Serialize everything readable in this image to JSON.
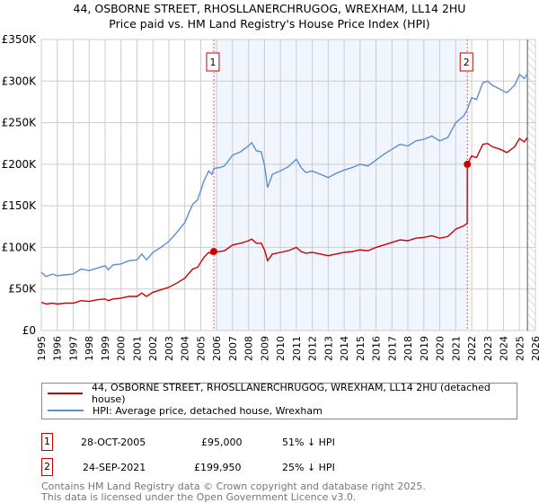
{
  "title_line1": "44, OSBORNE STREET, RHOSLLANERCHRUGOG, WREXHAM, LL14 2HU",
  "title_line2": "Price paid vs. HM Land Registry's House Price Index (HPI)",
  "chart_data": {
    "type": "line",
    "title": "44, OSBORNE STREET, RHOSLLANERCHRUGOG, WREXHAM, LL14 2HU — Price paid vs. HM Land Registry's House Price Index (HPI)",
    "xlim": [
      1995,
      2026
    ],
    "ylim": [
      0,
      350000
    ],
    "x_ticks": [
      "1995",
      "1996",
      "1997",
      "1998",
      "1999",
      "2000",
      "2001",
      "2002",
      "2003",
      "2004",
      "2005",
      "2006",
      "2007",
      "2008",
      "2009",
      "2010",
      "2011",
      "2012",
      "2013",
      "2014",
      "2015",
      "2016",
      "2017",
      "2018",
      "2019",
      "2020",
      "2021",
      "2022",
      "2023",
      "2024",
      "2025",
      "2026"
    ],
    "y_ticks": [
      {
        "v": 0,
        "label": "£0"
      },
      {
        "v": 50000,
        "label": "£50K"
      },
      {
        "v": 100000,
        "label": "£100K"
      },
      {
        "v": 150000,
        "label": "£150K"
      },
      {
        "v": 200000,
        "label": "£200K"
      },
      {
        "v": 250000,
        "label": "£250K"
      },
      {
        "v": 300000,
        "label": "£300K"
      },
      {
        "v": 350000,
        "label": "£350K"
      }
    ],
    "grid": true,
    "shaded_range": [
      2005.82,
      2021.73
    ],
    "forecast_hatch_from": 2025.5,
    "series": [
      {
        "name": "44, OSBORNE STREET, RHOSLLANERCHRUGOG, WREXHAM, LL14 2HU (detached house)",
        "color": "#cc0000",
        "x": [
          1995,
          1995.3,
          1995.7,
          1996,
          1996.5,
          1997,
          1997.5,
          1998,
          1998.5,
          1999,
          1999.2,
          1999.5,
          2000,
          2000.5,
          2001,
          2001.3,
          2001.6,
          2002,
          2002.5,
          2003,
          2003.5,
          2004,
          2004.5,
          2004.8,
          2005.2,
          2005.5,
          2005.7,
          2005.82,
          2006.2,
          2006.5,
          2007,
          2007.5,
          2008,
          2008.2,
          2008.5,
          2008.8,
          2009,
          2009.2,
          2009.5,
          2010,
          2010.5,
          2011,
          2011.3,
          2011.6,
          2012,
          2012.5,
          2013,
          2013.5,
          2014,
          2014.5,
          2015,
          2015.5,
          2016,
          2016.5,
          2017,
          2017.5,
          2018,
          2018.5,
          2019,
          2019.5,
          2020,
          2020.5,
          2021,
          2021.5,
          2021.72,
          2021.73,
          2022,
          2022.3,
          2022.7,
          2023,
          2023.3,
          2023.8,
          2024.2,
          2024.7,
          2025,
          2025.3,
          2025.5
        ],
        "values": [
          34000,
          32000,
          33000,
          32000,
          33000,
          33000,
          36000,
          35000,
          37000,
          38000,
          36000,
          38000,
          39000,
          41000,
          41000,
          45000,
          41000,
          46000,
          49000,
          52000,
          57000,
          63000,
          74000,
          76000,
          88000,
          94000,
          92000,
          95000,
          95000,
          96000,
          103000,
          105000,
          108000,
          110000,
          105000,
          105000,
          97000,
          84000,
          92000,
          94000,
          96000,
          100000,
          95000,
          93000,
          94000,
          92000,
          90000,
          92000,
          94000,
          95000,
          97000,
          96000,
          100000,
          103000,
          106000,
          109000,
          108000,
          111000,
          112000,
          114000,
          111000,
          113000,
          122000,
          126000,
          129000,
          199950,
          210000,
          208000,
          224000,
          225000,
          221000,
          218000,
          214000,
          221000,
          231000,
          227000,
          232000
        ]
      },
      {
        "name": "HPI: Average price, detached house, Wrexham",
        "color": "#5b8fd4",
        "x": [
          1995,
          1995.3,
          1995.7,
          1996,
          1996.5,
          1997,
          1997.5,
          1998,
          1998.5,
          1999,
          1999.2,
          1999.5,
          2000,
          2000.5,
          2001,
          2001.3,
          2001.6,
          2002,
          2002.5,
          2003,
          2003.5,
          2004,
          2004.5,
          2004.8,
          2005.2,
          2005.5,
          2005.7,
          2005.82,
          2006.2,
          2006.5,
          2007,
          2007.5,
          2008,
          2008.2,
          2008.5,
          2008.8,
          2009,
          2009.2,
          2009.5,
          2010,
          2010.5,
          2011,
          2011.3,
          2011.6,
          2012,
          2012.5,
          2013,
          2013.5,
          2014,
          2014.5,
          2015,
          2015.5,
          2016,
          2016.5,
          2017,
          2017.5,
          2018,
          2018.5,
          2019,
          2019.5,
          2020,
          2020.5,
          2021,
          2021.5,
          2021.73,
          2022,
          2022.3,
          2022.7,
          2023,
          2023.3,
          2023.8,
          2024.2,
          2024.7,
          2025,
          2025.3,
          2025.5
        ],
        "values": [
          70000,
          65000,
          68000,
          66000,
          67000,
          68000,
          74000,
          72000,
          75000,
          78000,
          73000,
          79000,
          80000,
          84000,
          85000,
          92000,
          85000,
          94000,
          100000,
          107000,
          118000,
          130000,
          152000,
          157000,
          180000,
          192000,
          188000,
          195000,
          196000,
          198000,
          211000,
          215000,
          222000,
          226000,
          216000,
          215000,
          199000,
          172000,
          188000,
          192000,
          197000,
          206000,
          196000,
          190000,
          192000,
          188000,
          184000,
          189000,
          193000,
          196000,
          200000,
          198000,
          205000,
          212000,
          218000,
          224000,
          222000,
          228000,
          230000,
          234000,
          228000,
          232000,
          250000,
          258000,
          266000,
          280000,
          278000,
          298000,
          300000,
          295000,
          290000,
          286000,
          295000,
          308000,
          303000,
          309000
        ]
      }
    ],
    "sales": [
      {
        "n": "1",
        "x": 2005.82,
        "value": 95000
      },
      {
        "n": "2",
        "x": 2021.73,
        "value": 199950
      }
    ]
  },
  "legend": {
    "property": "44, OSBORNE STREET, RHOSLLANERCHRUGOG, WREXHAM, LL14 2HU (detached house)",
    "hpi": "HPI: Average price, detached house, Wrexham"
  },
  "transactions": [
    {
      "n": "1",
      "date": "28-OCT-2005",
      "price": "£95,000",
      "diff": "51% ↓ HPI"
    },
    {
      "n": "2",
      "date": "24-SEP-2021",
      "price": "£199,950",
      "diff": "25% ↓ HPI"
    }
  ],
  "footer": {
    "line1": "Contains HM Land Registry data © Crown copyright and database right 2025.",
    "line2": "This data is licensed under the Open Government Licence v3.0."
  }
}
